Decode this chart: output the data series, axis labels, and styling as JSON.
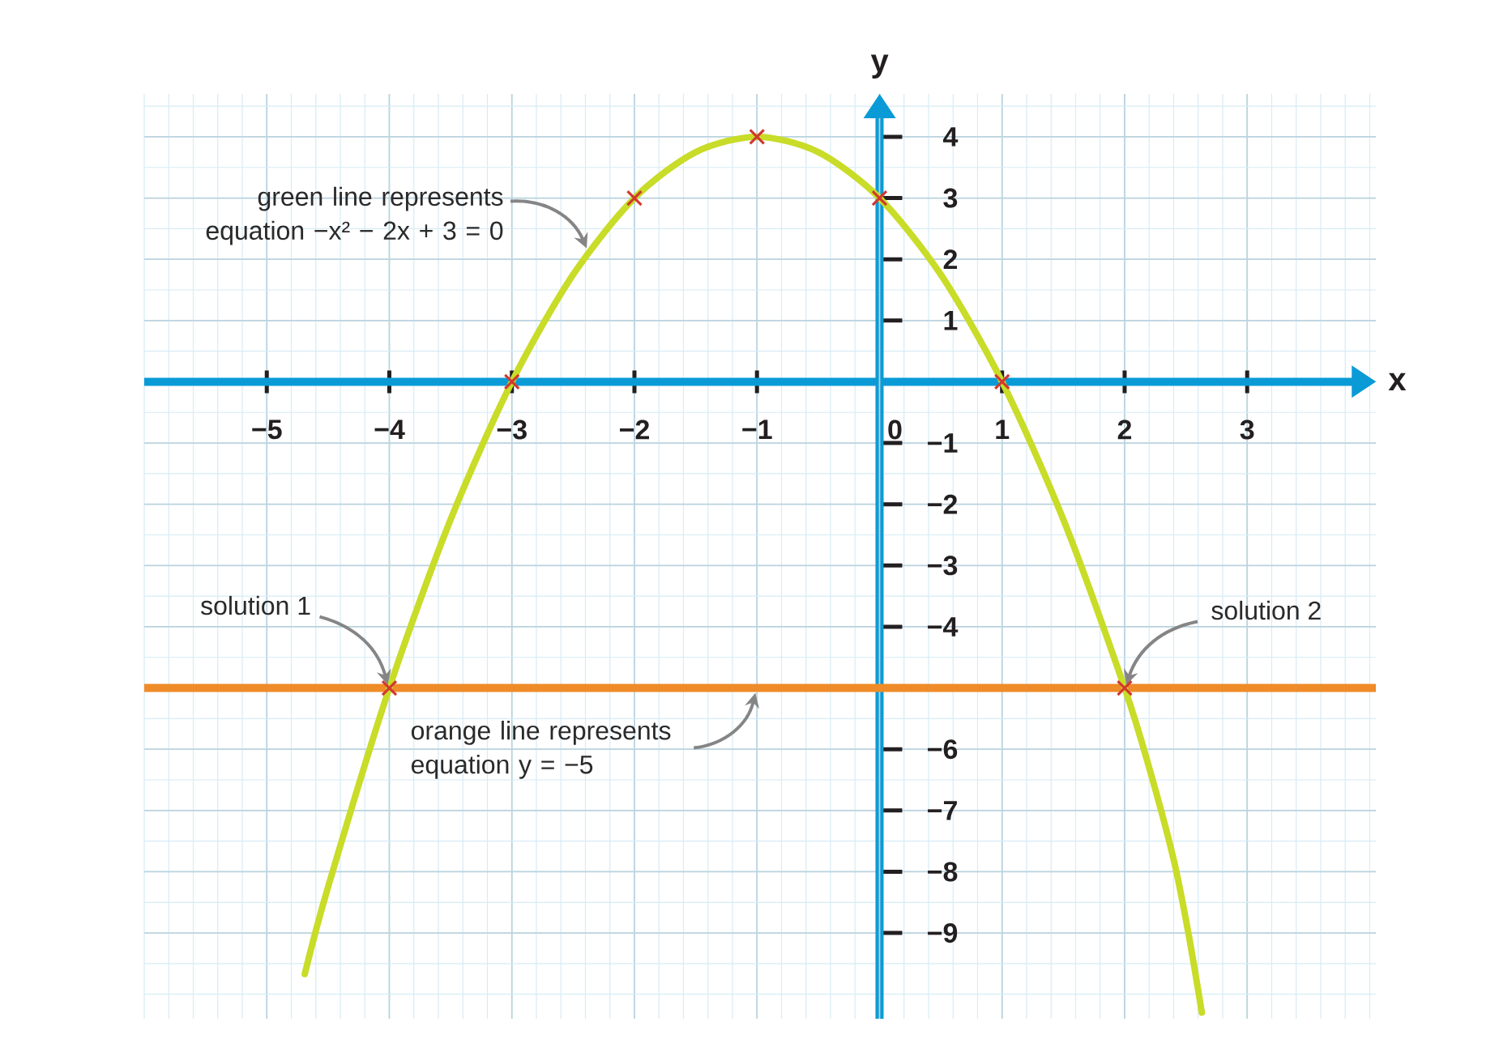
{
  "chart_data": {
    "type": "line",
    "xlabel": "x",
    "ylabel": "y",
    "series": [
      {
        "color": "#c8dc28",
        "marker": "none",
        "x": [
          -4.69,
          -4.5,
          -4,
          -3.5,
          -3,
          -2.5,
          -2,
          -1.5,
          -1,
          -0.5,
          0,
          0.5,
          1,
          1.5,
          2,
          2.2,
          2.4,
          2.52,
          2.63
        ],
        "values": [
          -9.67,
          -8.25,
          -5,
          -2.25,
          0,
          1.75,
          3,
          3.75,
          4,
          3.75,
          3,
          1.75,
          0,
          -2.25,
          -5,
          -6.3,
          -7.8,
          -9,
          -10.3
        ]
      },
      {
        "type": "scatter",
        "color": "#d0392e",
        "marker": "cross",
        "x": [
          -4,
          -3,
          -2,
          -1,
          0,
          1,
          2
        ],
        "values": [
          -5,
          0,
          3,
          4,
          3,
          0,
          -5
        ]
      }
    ],
    "xlim": [
      -6,
      4.05
    ],
    "ylim": [
      -10.4,
      4.7
    ],
    "xticks": [
      {
        "value": -5,
        "label": "−5"
      },
      {
        "value": -4,
        "label": "−4"
      },
      {
        "value": -3,
        "label": "−3"
      },
      {
        "value": -2,
        "label": "−2"
      },
      {
        "value": -1,
        "label": "−1"
      },
      0,
      1,
      2,
      3
    ],
    "yticks": [
      {
        "value": -9,
        "label": "−9"
      },
      {
        "value": -8,
        "label": "−8"
      },
      {
        "value": -7,
        "label": "−7"
      },
      {
        "value": -6,
        "label": "−6"
      },
      {
        "value": -4,
        "label": "−4"
      },
      {
        "value": -3,
        "label": "−3"
      },
      {
        "value": -2,
        "label": "−2"
      },
      {
        "value": -1,
        "label": "−1"
      },
      1,
      2,
      3,
      4
    ],
    "ref_lines": [
      {
        "axis": "y",
        "value": -5,
        "color": "#ef8b28"
      }
    ],
    "annotations": [
      {
        "text": "green line represents equation −x² − 2x + 3 = 0",
        "x": -2.35,
        "y": 2.18
      },
      {
        "text": "solution 1",
        "x": -4,
        "y": -5
      },
      {
        "text": "solution 2",
        "x": 2,
        "y": -5
      },
      {
        "text": "orange line represents equation y = −5",
        "x": -1,
        "y": -5
      }
    ],
    "grid": true
  }
}
